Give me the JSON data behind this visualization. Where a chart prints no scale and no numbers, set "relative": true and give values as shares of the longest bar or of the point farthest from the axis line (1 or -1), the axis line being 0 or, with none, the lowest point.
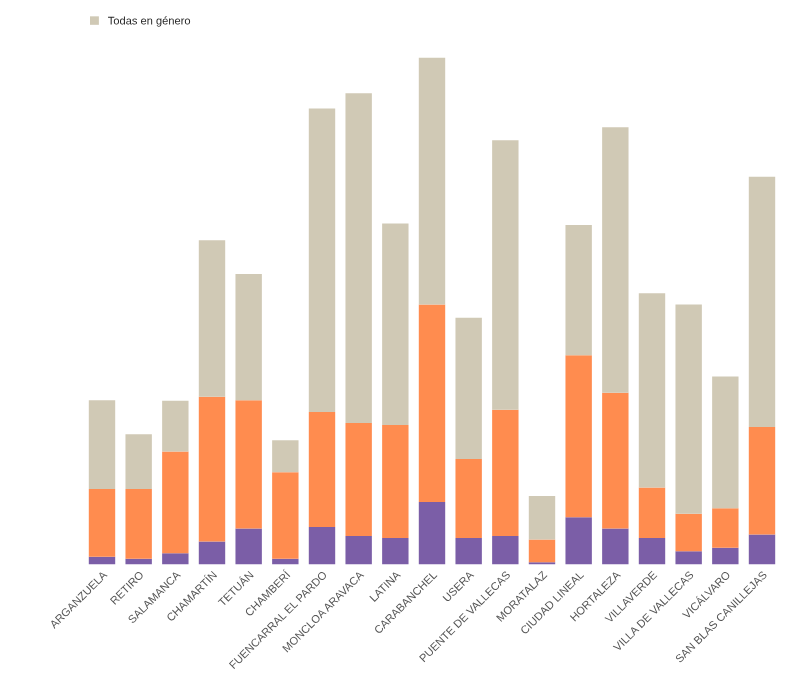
{
  "chart_data": {
    "type": "bar",
    "stacked": true,
    "relative": true,
    "legend": "top left",
    "categories": [
      "ARGANZUELA",
      "RETIRO",
      "SALAMANCA",
      "CHAMARTÍN",
      "TETUÁN",
      "CHAMBERÍ",
      "FUENCARRAL EL PARDO",
      "MONCLOA ARAVACA",
      "LATINA",
      "CARABANCHEL",
      "USERA",
      "PUENTE DE VALLECAS",
      "MORATALAZ",
      "CIUDAD LINEAL",
      "HORTALEZA",
      "VILLAVERDE",
      "VILLA DE VALLECAS",
      "VICÁLVARO",
      "SAN BLAS CANILLEJAS"
    ],
    "series": [
      {
        "color": "#7b5ea7",
        "values": [
          0.015,
          0.011,
          0.022,
          0.045,
          0.071,
          0.011,
          0.074,
          0.056,
          0.052,
          0.123,
          0.052,
          0.056,
          0.004,
          0.093,
          0.071,
          0.052,
          0.026,
          0.033,
          0.059
        ]
      },
      {
        "color": "#ff8c4f",
        "values": [
          0.134,
          0.138,
          0.201,
          0.286,
          0.253,
          0.171,
          0.227,
          0.223,
          0.223,
          0.39,
          0.156,
          0.249,
          0.045,
          0.32,
          0.268,
          0.1,
          0.074,
          0.078,
          0.212
        ]
      },
      {
        "name": "Todas en género",
        "color": "#d0c9b5",
        "values": [
          0.175,
          0.108,
          0.1,
          0.309,
          0.249,
          0.063,
          0.599,
          0.651,
          0.398,
          0.487,
          0.279,
          0.532,
          0.086,
          0.257,
          0.524,
          0.383,
          0.413,
          0.26,
          0.494
        ]
      }
    ]
  }
}
